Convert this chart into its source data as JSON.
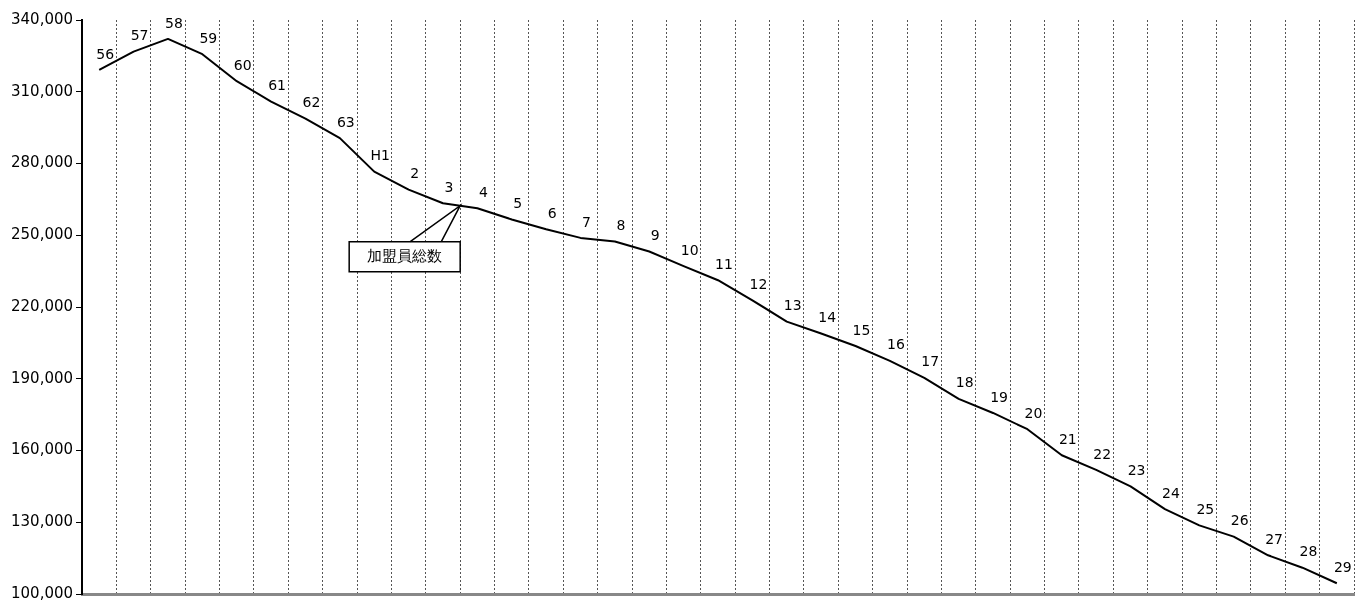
{
  "chart_data": {
    "type": "line",
    "categories": [
      "56",
      "57",
      "58",
      "59",
      "60",
      "61",
      "62",
      "63",
      "H1",
      "2",
      "3",
      "4",
      "5",
      "6",
      "7",
      "8",
      "9",
      "10",
      "11",
      "12",
      "13",
      "14",
      "15",
      "16",
      "17",
      "18",
      "19",
      "20",
      "21",
      "22",
      "23",
      "24",
      "25",
      "26",
      "27",
      "28",
      "29"
    ],
    "series": [
      {
        "name": "加盟員総数",
        "color": "#000000",
        "values": [
          319100,
          326800,
          332100,
          325700,
          314400,
          305900,
          298800,
          290600,
          276600,
          269100,
          263400,
          261300,
          256600,
          252500,
          248900,
          247400,
          243200,
          237100,
          231200,
          222800,
          213900,
          208900,
          203700,
          197500,
          190400,
          181600,
          175700,
          168900,
          158000,
          151900,
          145000,
          135500,
          128700,
          124000,
          116200,
          111000,
          104500
        ]
      }
    ],
    "ylim": [
      100000,
      340000
    ],
    "yticks": [
      {
        "value": 100000,
        "label": "100,000"
      },
      {
        "value": 130000,
        "label": "130,000"
      },
      {
        "value": 160000,
        "label": "160,000"
      },
      {
        "value": 190000,
        "label": "190,000"
      },
      {
        "value": 220000,
        "label": "220,000"
      },
      {
        "value": 250000,
        "label": "250,000"
      },
      {
        "value": 280000,
        "label": "280,000"
      },
      {
        "value": 310000,
        "label": "310,000"
      },
      {
        "value": 340000,
        "label": "340,000"
      }
    ],
    "grid": "x",
    "marker": "none",
    "line_style": "solid",
    "legend": "top left"
  }
}
